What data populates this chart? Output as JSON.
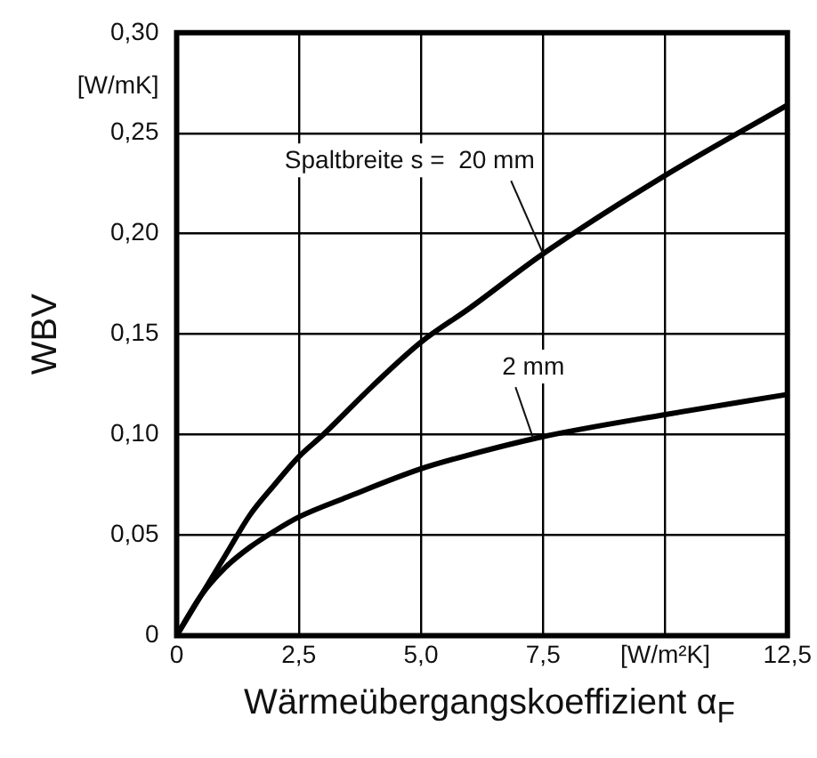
{
  "chart_data": {
    "type": "line",
    "xlabel": "Wärmeübergangskoeffizient α$_{F}$",
    "ylabel": "WBV",
    "xlim": [
      0,
      12.5
    ],
    "xticks": [
      {
        "value": 0,
        "label": "0"
      },
      {
        "value": 2.5,
        "label": "2,5"
      },
      {
        "value": 5,
        "label": "5,0"
      },
      {
        "value": 7.5,
        "label": "7,5"
      },
      {
        "value": 10,
        "label": "[W/m²K]"
      },
      {
        "value": 12.5,
        "label": "12,5"
      }
    ],
    "ylim": [
      0,
      0.3
    ],
    "yticks": [
      {
        "value": 0,
        "label": "0"
      },
      {
        "value": 0.05,
        "label": "0,05"
      },
      {
        "value": 0.1,
        "label": "0,10"
      },
      {
        "value": 0.15,
        "label": "0,15"
      },
      {
        "value": 0.2,
        "label": "0,20"
      },
      {
        "value": 0.25,
        "label": "0,25"
      },
      {
        "value": 0.3,
        "label": "0,30"
      }
    ],
    "grid": true,
    "legend": false,
    "marker": "none",
    "line_style": "solid",
    "series": [
      {
        "color": "#000000",
        "x": [
          0,
          0.5,
          1,
          1.5,
          2,
          2.5,
          3,
          4,
          5,
          6,
          7.5,
          10,
          12.5
        ],
        "values": [
          0,
          0.02,
          0.04,
          0.06,
          0.075,
          0.089,
          0.1,
          0.124,
          0.146,
          0.163,
          0.19,
          0.229,
          0.264
        ]
      },
      {
        "color": "#000000",
        "x": [
          0,
          0.5,
          1,
          1.5,
          2,
          2.5,
          3.5,
          5,
          6,
          7.5,
          10,
          12.5
        ],
        "values": [
          0,
          0.02,
          0.034,
          0.044,
          0.052,
          0.059,
          0.069,
          0.083,
          0.09,
          0.099,
          0.11,
          0.12
        ]
      }
    ],
    "annotations": [
      "[W/mK]",
      {
        "text": "Spaltbreite s =  20 mm",
        "x": 7.5,
        "y": 0.19
      },
      {
        "text": "2 mm",
        "x": 7.3,
        "y": 0.098
      }
    ]
  }
}
